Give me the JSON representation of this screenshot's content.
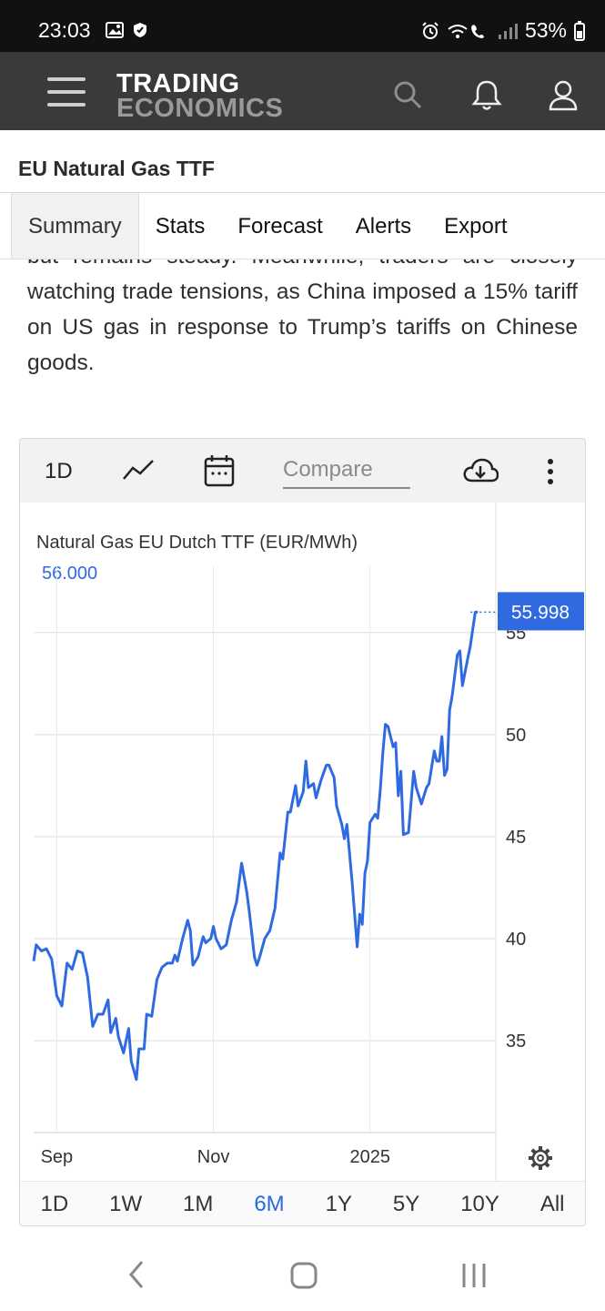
{
  "status_bar": {
    "time": "23:03",
    "battery": "53%"
  },
  "header": {
    "logo_line1": "TRADING",
    "logo_line2": "ECONOMICS",
    "icons": [
      "menu-icon",
      "search-icon",
      "bell-icon",
      "user-icon"
    ]
  },
  "page": {
    "title": "EU Natural Gas TTF"
  },
  "tabs": [
    {
      "label": "Summary",
      "active": true
    },
    {
      "label": "Stats"
    },
    {
      "label": "Forecast"
    },
    {
      "label": "Alerts"
    },
    {
      "label": "Export"
    }
  ],
  "article": {
    "text_partial": "but remains steady. Meanwhile, traders are closely watching trade tensions, as China imposed a 15% tariff on US gas in response to Trump’s tariffs on Chinese goods."
  },
  "chart_toolbar": {
    "interval": "1D",
    "compare_placeholder": "Compare",
    "icons": [
      "line-chart-icon",
      "calendar-icon",
      "download-icon",
      "more-icon"
    ]
  },
  "chart_data": {
    "type": "line",
    "title": "Natural Gas EU Dutch TTF (EUR/MWh)",
    "high_label": "56.000",
    "last_value_label": "55.998",
    "last_value": 55.998,
    "ylim": [
      30.5,
      57.8
    ],
    "yticks": [
      35,
      40,
      45,
      50,
      55
    ],
    "xlim": [
      "2024-08-23",
      "2025-02-19"
    ],
    "xticks": [
      {
        "label": "Sep",
        "date": "2024-09-01"
      },
      {
        "label": "Nov",
        "date": "2024-11-01"
      },
      {
        "label": "2025",
        "date": "2025-01-01"
      }
    ],
    "series": [
      {
        "color": "#2f6ae0",
        "points": [
          [
            "2024-08-23",
            38.9
          ],
          [
            "2024-08-24",
            39.7
          ],
          [
            "2024-08-26",
            39.4
          ],
          [
            "2024-08-28",
            39.5
          ],
          [
            "2024-08-30",
            39.0
          ],
          [
            "2024-09-01",
            37.2
          ],
          [
            "2024-09-03",
            36.7
          ],
          [
            "2024-09-05",
            38.8
          ],
          [
            "2024-09-07",
            38.5
          ],
          [
            "2024-09-09",
            39.4
          ],
          [
            "2024-09-11",
            39.3
          ],
          [
            "2024-09-13",
            38.1
          ],
          [
            "2024-09-15",
            35.7
          ],
          [
            "2024-09-17",
            36.3
          ],
          [
            "2024-09-19",
            36.3
          ],
          [
            "2024-09-21",
            37.0
          ],
          [
            "2024-09-22",
            35.4
          ],
          [
            "2024-09-24",
            36.1
          ],
          [
            "2024-09-25",
            35.2
          ],
          [
            "2024-09-27",
            34.4
          ],
          [
            "2024-09-29",
            35.6
          ],
          [
            "2024-09-30",
            34.0
          ],
          [
            "2024-10-02",
            33.1
          ],
          [
            "2024-10-03",
            34.6
          ],
          [
            "2024-10-05",
            34.6
          ],
          [
            "2024-10-06",
            36.3
          ],
          [
            "2024-10-08",
            36.2
          ],
          [
            "2024-10-10",
            38.0
          ],
          [
            "2024-10-12",
            38.6
          ],
          [
            "2024-10-14",
            38.8
          ],
          [
            "2024-10-16",
            38.8
          ],
          [
            "2024-10-17",
            39.2
          ],
          [
            "2024-10-18",
            38.9
          ],
          [
            "2024-10-20",
            40.0
          ],
          [
            "2024-10-22",
            40.9
          ],
          [
            "2024-10-23",
            40.4
          ],
          [
            "2024-10-24",
            38.7
          ],
          [
            "2024-10-26",
            39.1
          ],
          [
            "2024-10-28",
            40.1
          ],
          [
            "2024-10-29",
            39.8
          ],
          [
            "2024-10-31",
            40.0
          ],
          [
            "2024-11-01",
            40.6
          ],
          [
            "2024-11-02",
            40.0
          ],
          [
            "2024-11-04",
            39.5
          ],
          [
            "2024-11-06",
            39.7
          ],
          [
            "2024-11-08",
            40.9
          ],
          [
            "2024-11-10",
            41.8
          ],
          [
            "2024-11-12",
            43.7
          ],
          [
            "2024-11-14",
            42.3
          ],
          [
            "2024-11-15",
            41.3
          ],
          [
            "2024-11-17",
            39.1
          ],
          [
            "2024-11-18",
            38.7
          ],
          [
            "2024-11-19",
            39.1
          ],
          [
            "2024-11-21",
            40.0
          ],
          [
            "2024-11-23",
            40.4
          ],
          [
            "2024-11-25",
            41.5
          ],
          [
            "2024-11-27",
            44.2
          ],
          [
            "2024-11-28",
            43.9
          ],
          [
            "2024-11-30",
            46.2
          ],
          [
            "2024-12-01",
            46.2
          ],
          [
            "2024-12-03",
            47.5
          ],
          [
            "2024-12-04",
            46.5
          ],
          [
            "2024-12-06",
            47.2
          ],
          [
            "2024-12-07",
            48.7
          ],
          [
            "2024-12-08",
            47.4
          ],
          [
            "2024-12-10",
            47.6
          ],
          [
            "2024-12-11",
            46.9
          ],
          [
            "2024-12-13",
            47.8
          ],
          [
            "2024-12-15",
            48.5
          ],
          [
            "2024-12-16",
            48.5
          ],
          [
            "2024-12-18",
            47.9
          ],
          [
            "2024-12-19",
            46.5
          ],
          [
            "2024-12-21",
            45.6
          ],
          [
            "2024-12-22",
            44.9
          ],
          [
            "2024-12-23",
            45.6
          ],
          [
            "2024-12-25",
            42.8
          ],
          [
            "2024-12-27",
            39.6
          ],
          [
            "2024-12-28",
            41.2
          ],
          [
            "2024-12-29",
            40.7
          ],
          [
            "2024-12-30",
            43.2
          ],
          [
            "2024-12-31",
            43.8
          ],
          [
            "2025-01-01",
            45.7
          ],
          [
            "2025-01-03",
            46.1
          ],
          [
            "2025-01-04",
            45.9
          ],
          [
            "2025-01-05",
            47.3
          ],
          [
            "2025-01-06",
            49.1
          ],
          [
            "2025-01-07",
            50.5
          ],
          [
            "2025-01-08",
            50.4
          ],
          [
            "2025-01-10",
            49.4
          ],
          [
            "2025-01-11",
            49.6
          ],
          [
            "2025-01-12",
            47.0
          ],
          [
            "2025-01-13",
            48.2
          ],
          [
            "2025-01-14",
            45.1
          ],
          [
            "2025-01-16",
            45.2
          ],
          [
            "2025-01-18",
            48.2
          ],
          [
            "2025-01-19",
            47.4
          ],
          [
            "2025-01-21",
            46.6
          ],
          [
            "2025-01-23",
            47.4
          ],
          [
            "2025-01-24",
            47.6
          ],
          [
            "2025-01-26",
            49.2
          ],
          [
            "2025-01-27",
            48.7
          ],
          [
            "2025-01-28",
            48.7
          ],
          [
            "2025-01-29",
            49.9
          ],
          [
            "2025-01-30",
            48.0
          ],
          [
            "2025-01-31",
            48.3
          ],
          [
            "2025-02-01",
            51.2
          ],
          [
            "2025-02-02",
            51.9
          ],
          [
            "2025-02-04",
            53.9
          ],
          [
            "2025-02-05",
            54.1
          ],
          [
            "2025-02-06",
            52.4
          ],
          [
            "2025-02-08",
            53.7
          ],
          [
            "2025-02-09",
            54.3
          ],
          [
            "2025-02-11",
            56.0
          ],
          [
            "2025-02-12",
            55.998
          ]
        ]
      }
    ],
    "grid": true
  },
  "range_buttons": [
    "1D",
    "1W",
    "1M",
    "6M",
    "1Y",
    "5Y",
    "10Y",
    "All"
  ],
  "range_active": "6M"
}
